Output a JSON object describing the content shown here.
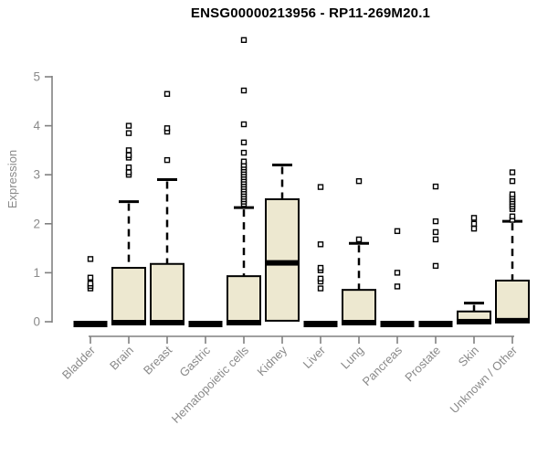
{
  "title": "ENSG00000213956 - RP11-269M20.1",
  "chart_data": {
    "type": "boxplot",
    "title": "ENSG00000213956 - RP11-269M20.1",
    "xlabel": "",
    "ylabel": "Expression",
    "ylim": [
      0,
      5
    ],
    "yticks": [
      "0",
      "1",
      "2",
      "3",
      "4",
      "5"
    ],
    "grid": false,
    "legend": "none",
    "categories": [
      "Bladder",
      "Brain",
      "Breast",
      "Gastric",
      "Hematopoietic cells",
      "Kidney",
      "Liver",
      "Lung",
      "Pancreas",
      "Prostate",
      "Skin",
      "Unknown / Other"
    ],
    "series": [
      {
        "name": "Bladder",
        "q1": 0,
        "median": 0,
        "q3": 0,
        "whisker_low": 0,
        "whisker_high": 0,
        "outliers": [
          0.68,
          0.73,
          0.78,
          0.9,
          1.28
        ]
      },
      {
        "name": "Brain",
        "q1": 0,
        "median": 0,
        "q3": 1.1,
        "whisker_low": 0,
        "whisker_high": 2.45,
        "outliers": [
          3.0,
          3.05,
          3.15,
          3.35,
          3.4,
          3.5,
          3.85,
          4.0
        ]
      },
      {
        "name": "Breast",
        "q1": 0,
        "median": 0,
        "q3": 1.18,
        "whisker_low": 0,
        "whisker_high": 2.9,
        "outliers": [
          3.3,
          3.88,
          3.95,
          4.65
        ]
      },
      {
        "name": "Gastric",
        "q1": 0,
        "median": 0,
        "q3": 0,
        "whisker_low": 0,
        "whisker_high": 0,
        "outliers": []
      },
      {
        "name": "Hematopoietic cells",
        "q1": 0,
        "median": 0,
        "q3": 0.93,
        "whisker_low": 0,
        "whisker_high": 2.33,
        "outliers": [
          2.4,
          2.45,
          2.5,
          2.55,
          2.6,
          2.65,
          2.7,
          2.75,
          2.8,
          2.85,
          2.9,
          2.95,
          3.0,
          3.05,
          3.1,
          3.15,
          3.2,
          3.27,
          3.45,
          3.66,
          4.03,
          4.72,
          5.75
        ]
      },
      {
        "name": "Kidney",
        "q1": 0.02,
        "median": 1.22,
        "q3": 2.5,
        "whisker_low": 0.02,
        "whisker_high": 3.2,
        "outliers": []
      },
      {
        "name": "Liver",
        "q1": 0,
        "median": 0,
        "q3": 0,
        "whisker_low": 0,
        "whisker_high": 0,
        "outliers": [
          0.68,
          0.82,
          0.88,
          1.05,
          1.1,
          1.58,
          2.75
        ]
      },
      {
        "name": "Lung",
        "q1": 0,
        "median": 0,
        "q3": 0.65,
        "whisker_low": 0,
        "whisker_high": 1.6,
        "outliers": [
          1.68,
          2.87
        ]
      },
      {
        "name": "Pancreas",
        "q1": 0,
        "median": 0,
        "q3": 0,
        "whisker_low": 0,
        "whisker_high": 0,
        "outliers": [
          0.72,
          1.0,
          1.85
        ]
      },
      {
        "name": "Prostate",
        "q1": 0,
        "median": 0,
        "q3": 0,
        "whisker_low": 0,
        "whisker_high": 0,
        "outliers": [
          1.14,
          1.68,
          1.83,
          2.05,
          2.76
        ]
      },
      {
        "name": "Skin",
        "q1": 0,
        "median": 0.02,
        "q3": 0.21,
        "whisker_low": 0,
        "whisker_high": 0.38,
        "outliers": [
          1.9,
          2.0,
          2.12
        ]
      },
      {
        "name": "Unknown / Other",
        "q1": 0,
        "median": 0.04,
        "q3": 0.84,
        "whisker_low": 0,
        "whisker_high": 2.05,
        "outliers": [
          2.08,
          2.15,
          2.3,
          2.35,
          2.4,
          2.45,
          2.5,
          2.55,
          2.6,
          2.87,
          3.05
        ]
      }
    ],
    "colors": {
      "box_fill": "#ede8d0",
      "box_border": "#000000",
      "median": "#000000",
      "outlier": "#000000",
      "axis": "#808080",
      "tick_label": "#8a8a8a",
      "title": "#000000",
      "background": "#ffffff"
    }
  }
}
